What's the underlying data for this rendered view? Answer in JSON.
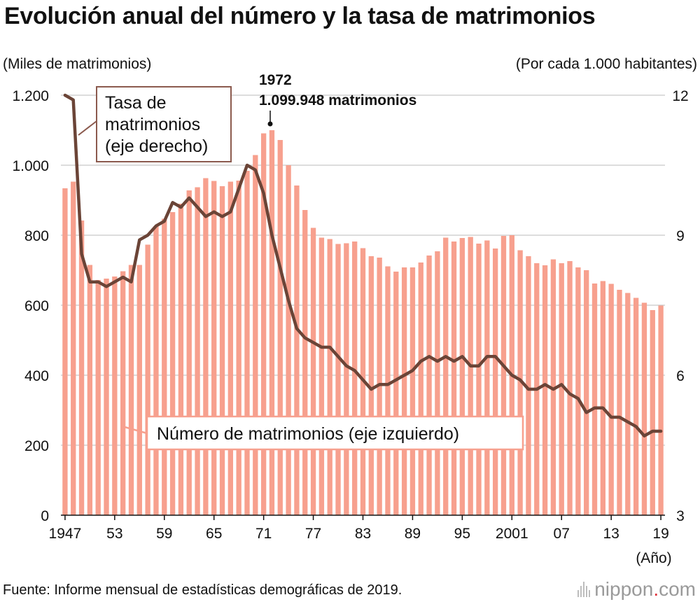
{
  "title": "Evolución anual del número y la tasa de matrimonios",
  "source": "Fuente: Informe mensual de estadísticas demográficas de 2019.",
  "logo": {
    "name": "nippon",
    "dot": ".",
    "tld": "com"
  },
  "colors": {
    "bars": "#f7a08e",
    "line": "#6b4437",
    "grid": "#c8c8c8",
    "callout_border": "#8b5a4e"
  },
  "chart_data": {
    "type": "bar",
    "title": "Evolución anual del número y la tasa de matrimonios",
    "left_axis": {
      "label": "(Miles de matrimonios)",
      "range": [
        0,
        1200
      ],
      "ticks": [
        0,
        200,
        400,
        600,
        800,
        1000,
        1200
      ],
      "tick_labels": [
        "0",
        "200",
        "400",
        "600",
        "800",
        "1.000",
        "1.200"
      ]
    },
    "right_axis": {
      "label": "(Por cada 1.000 habitantes)",
      "range": [
        3,
        12
      ],
      "ticks": [
        3,
        6,
        9,
        12
      ],
      "tick_labels": [
        "3",
        "6",
        "9",
        "12"
      ]
    },
    "x_axis": {
      "label": "(Año)",
      "tick_years": [
        1947,
        1953,
        1959,
        1965,
        1971,
        1977,
        1983,
        1989,
        1995,
        2001,
        2007,
        2013,
        2019
      ],
      "tick_labels": [
        "1947",
        "53",
        "59",
        "65",
        "71",
        "77",
        "83",
        "89",
        "95",
        "2001",
        "07",
        "13",
        "19"
      ]
    },
    "grid": true,
    "x": [
      1947,
      1948,
      1949,
      1950,
      1951,
      1952,
      1953,
      1954,
      1955,
      1956,
      1957,
      1958,
      1959,
      1960,
      1961,
      1962,
      1963,
      1964,
      1965,
      1966,
      1967,
      1968,
      1969,
      1970,
      1971,
      1972,
      1973,
      1974,
      1975,
      1976,
      1977,
      1978,
      1979,
      1980,
      1981,
      1982,
      1983,
      1984,
      1985,
      1986,
      1987,
      1988,
      1989,
      1990,
      1991,
      1992,
      1993,
      1994,
      1995,
      1996,
      1997,
      1998,
      1999,
      2000,
      2001,
      2002,
      2003,
      2004,
      2005,
      2006,
      2007,
      2008,
      2009,
      2010,
      2011,
      2012,
      2013,
      2014,
      2015,
      2016,
      2017,
      2018,
      2019
    ],
    "series": [
      {
        "name": "Número de matrimonios (eje izquierdo)",
        "type": "bar",
        "axis": "left",
        "values": [
          934,
          953,
          842,
          715,
          672,
          676,
          682,
          697,
          715,
          715,
          773,
          826,
          847,
          866,
          890,
          928,
          937,
          963,
          955,
          940,
          953,
          956,
          984,
          1029,
          1091,
          1100,
          1072,
          1000,
          942,
          872,
          821,
          793,
          789,
          775,
          777,
          782,
          763,
          740,
          736,
          711,
          696,
          708,
          708,
          722,
          742,
          754,
          793,
          782,
          792,
          795,
          776,
          785,
          762,
          798,
          800,
          757,
          740,
          720,
          714,
          731,
          720,
          726,
          708,
          700,
          662,
          669,
          661,
          644,
          635,
          621,
          607,
          586,
          599
        ]
      },
      {
        "name": "Tasa de matrimonios (eje derecho)",
        "type": "line",
        "axis": "right",
        "values": [
          12.0,
          11.9,
          8.6,
          8.0,
          8.0,
          7.9,
          8.0,
          8.1,
          8.0,
          8.9,
          9.0,
          9.2,
          9.3,
          9.7,
          9.6,
          9.8,
          9.6,
          9.4,
          9.5,
          9.4,
          9.5,
          10.0,
          10.5,
          10.4,
          9.9,
          9.0,
          8.3,
          7.6,
          7.0,
          6.8,
          6.7,
          6.6,
          6.6,
          6.4,
          6.2,
          6.1,
          5.9,
          5.7,
          5.8,
          5.8,
          5.9,
          6.0,
          6.1,
          6.3,
          6.4,
          6.3,
          6.4,
          6.3,
          6.4,
          6.2,
          6.2,
          6.4,
          6.4,
          6.2,
          6.0,
          5.9,
          5.7,
          5.7,
          5.8,
          5.7,
          5.8,
          5.6,
          5.5,
          5.2,
          5.3,
          5.3,
          5.1,
          5.1,
          5.0,
          4.9,
          4.7,
          4.8,
          4.8
        ]
      }
    ],
    "annotations": {
      "peak_year": "1972",
      "peak_value": "1.099.948 matrimonios",
      "rate_callout": [
        "Tasa de",
        "matrimonios",
        "(eje derecho)"
      ],
      "count_callout": "Número de matrimonios (eje izquierdo)"
    }
  }
}
